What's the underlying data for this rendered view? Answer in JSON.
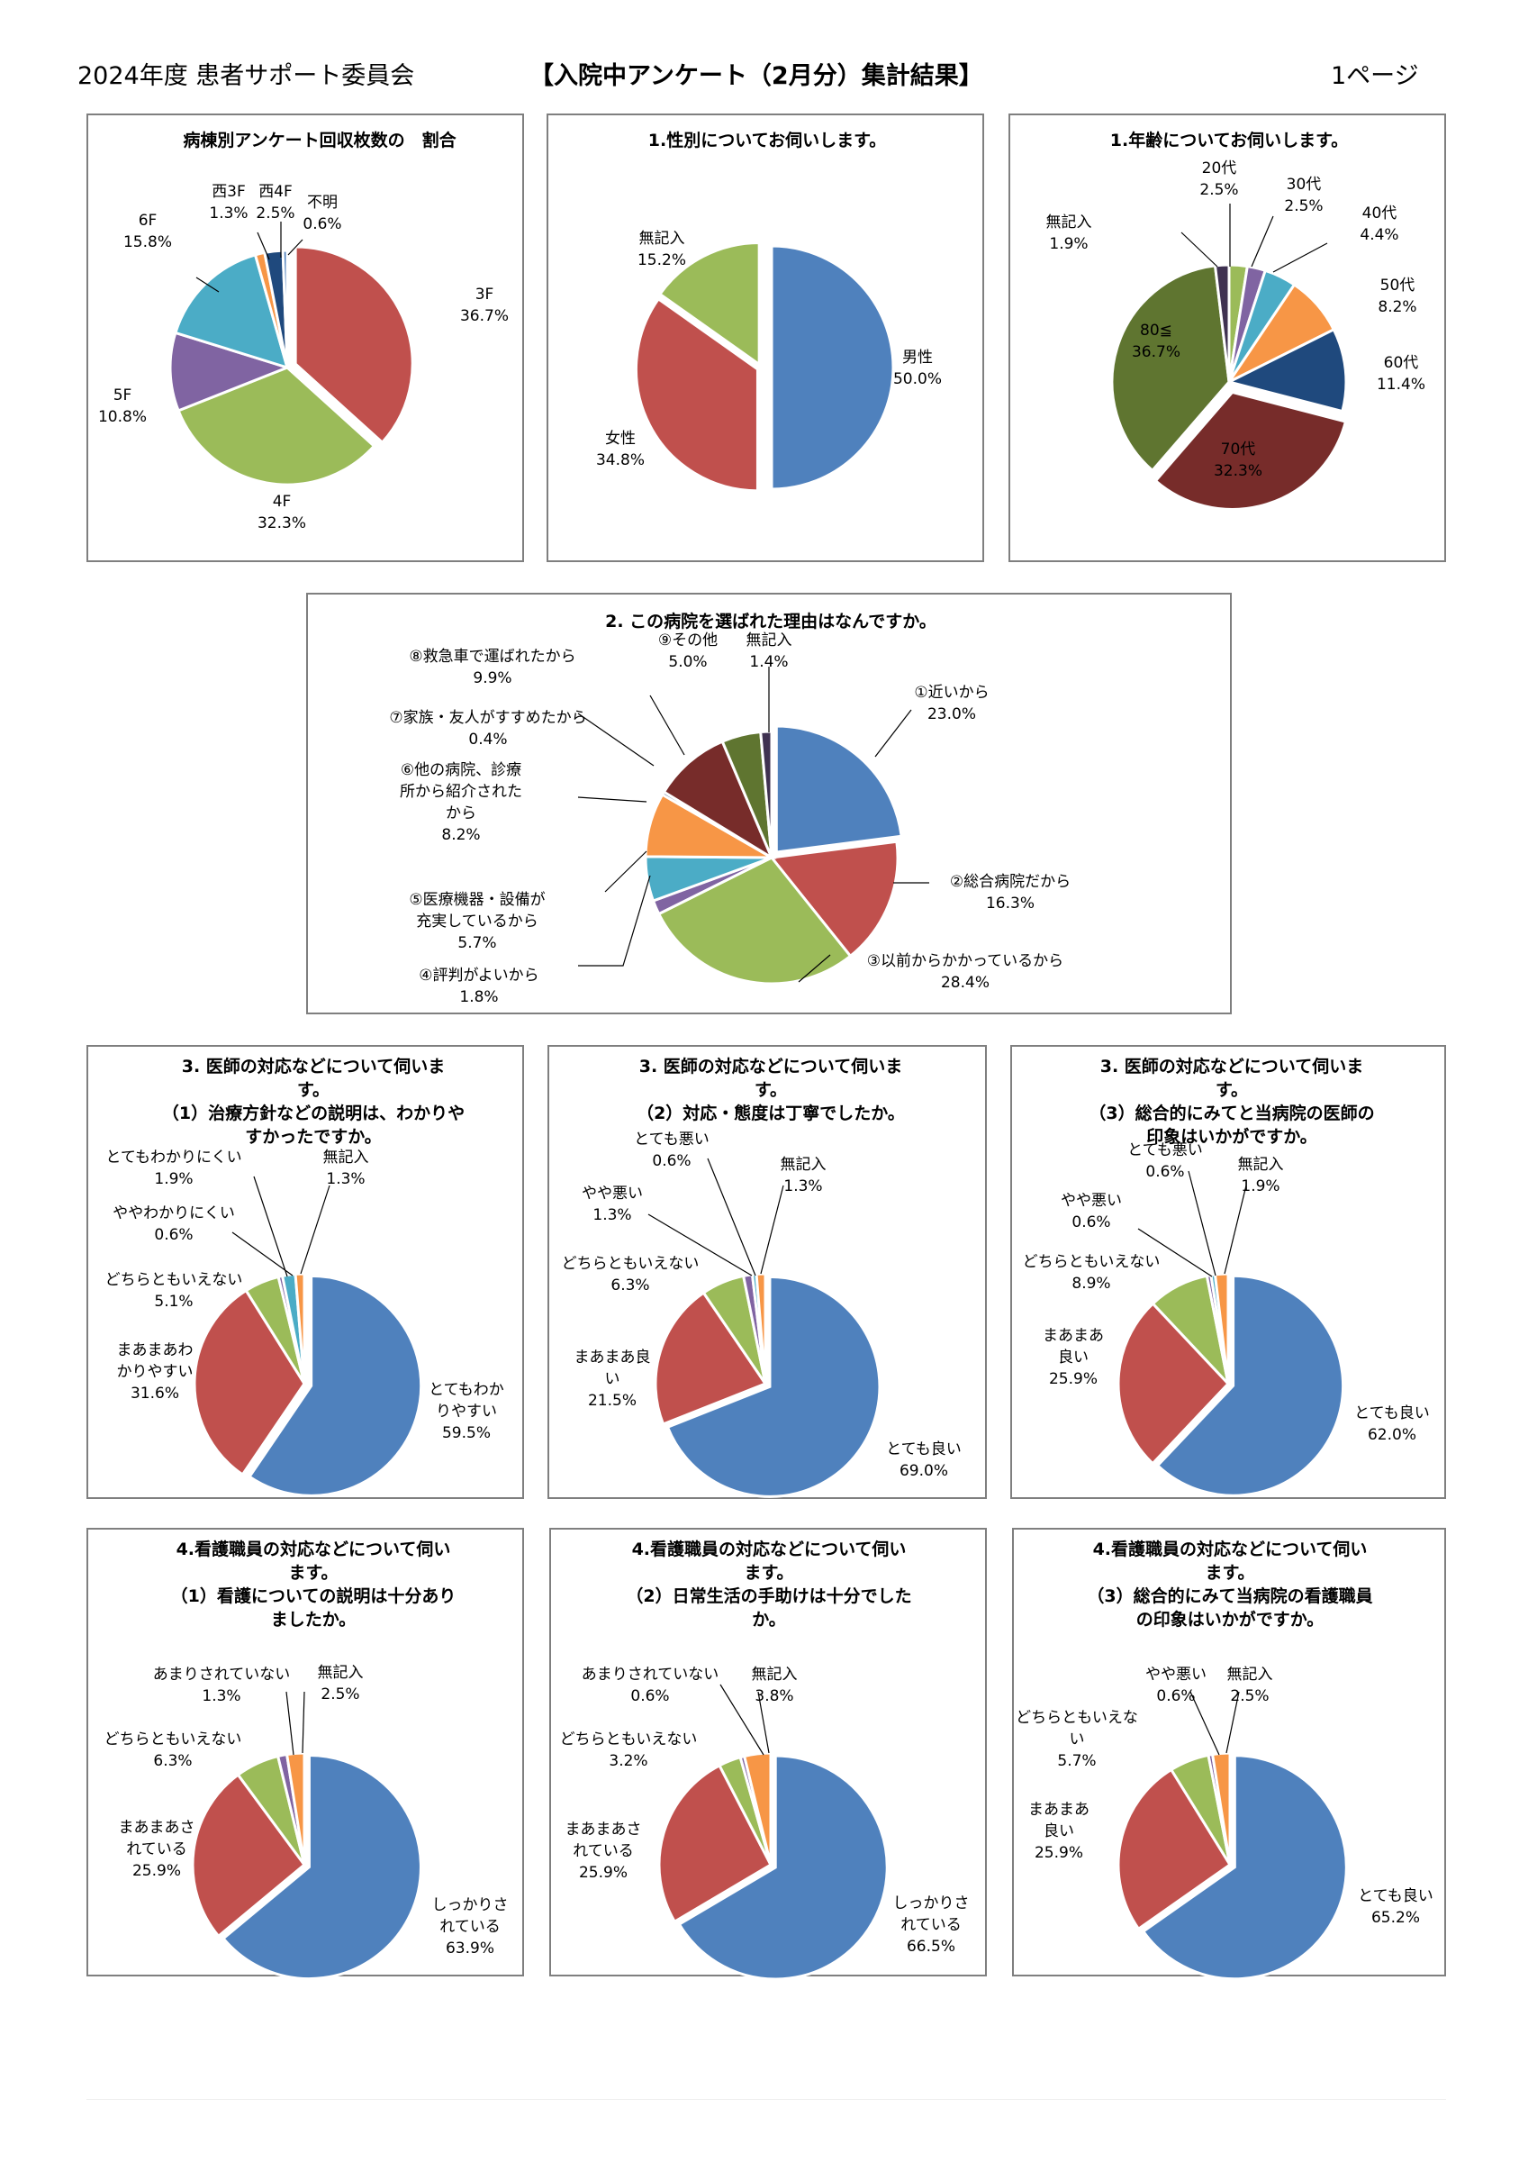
{
  "header": {
    "left": "2024年度 患者サポート委員会",
    "center": "【入院中アンケート（2月分）集計結果】",
    "right": "1ページ"
  },
  "chart_data": [
    {
      "id": "c1",
      "type": "pie",
      "title": [
        "病棟別アンケート回収枚数の　割合"
      ],
      "slices": [
        {
          "label": [
            "3F"
          ],
          "value": 36.7,
          "pct": "36.7%",
          "color": "#C0504D"
        },
        {
          "label": [
            "4F"
          ],
          "value": 32.3,
          "pct": "32.3%",
          "color": "#9BBB59"
        },
        {
          "label": [
            "5F"
          ],
          "value": 10.8,
          "pct": "10.8%",
          "color": "#8064A2"
        },
        {
          "label": [
            "6F"
          ],
          "value": 15.8,
          "pct": "15.8%",
          "color": "#4BACC6"
        },
        {
          "label": [
            "西3F"
          ],
          "value": 1.3,
          "pct": "1.3%",
          "color": "#F79646"
        },
        {
          "label": [
            "西4F"
          ],
          "value": 2.5,
          "pct": "2.5%",
          "color": "#1F497D"
        },
        {
          "label": [
            "不明"
          ],
          "value": 0.6,
          "pct": "0.6%",
          "color": "#4F81BD"
        }
      ]
    },
    {
      "id": "c2",
      "type": "pie",
      "title": [
        "1.性別についてお伺いします。"
      ],
      "slices": [
        {
          "label": [
            "男性"
          ],
          "value": 50.0,
          "pct": "50.0%",
          "color": "#4F81BD"
        },
        {
          "label": [
            "女性"
          ],
          "value": 34.8,
          "pct": "34.8%",
          "color": "#C0504D"
        },
        {
          "label": [
            "無記入"
          ],
          "value": 15.2,
          "pct": "15.2%",
          "color": "#9BBB59"
        }
      ]
    },
    {
      "id": "c3",
      "type": "pie",
      "title": [
        "1.年齢についてお伺いします。"
      ],
      "slices": [
        {
          "label": [
            "20代"
          ],
          "value": 2.5,
          "pct": "2.5%",
          "color": "#9BBB59"
        },
        {
          "label": [
            "30代"
          ],
          "value": 2.5,
          "pct": "2.5%",
          "color": "#8064A2"
        },
        {
          "label": [
            "40代"
          ],
          "value": 4.4,
          "pct": "4.4%",
          "color": "#4BACC6"
        },
        {
          "label": [
            "50代"
          ],
          "value": 8.2,
          "pct": "8.2%",
          "color": "#F79646"
        },
        {
          "label": [
            "60代"
          ],
          "value": 11.4,
          "pct": "11.4%",
          "color": "#1F497D"
        },
        {
          "label": [
            "70代"
          ],
          "value": 32.3,
          "pct": "32.3%",
          "color": "#772C2A"
        },
        {
          "label": [
            "80≦"
          ],
          "value": 36.7,
          "pct": "36.7%",
          "color": "#5F7530"
        },
        {
          "label": [
            "無記入"
          ],
          "value": 1.9,
          "pct": "1.9%",
          "color": "#3F3151"
        }
      ]
    },
    {
      "id": "c4",
      "type": "pie",
      "title": [
        "2. この病院を選ばれた理由はなんですか。"
      ],
      "slices": [
        {
          "label": [
            "①近いから"
          ],
          "value": 23.0,
          "pct": "23.0%",
          "color": "#4F81BD"
        },
        {
          "label": [
            "②総合病院だから"
          ],
          "value": 16.3,
          "pct": "16.3%",
          "color": "#C0504D"
        },
        {
          "label": [
            "③以前からかかっているから"
          ],
          "value": 28.4,
          "pct": "28.4%",
          "color": "#9BBB59"
        },
        {
          "label": [
            "④評判がよいから"
          ],
          "value": 1.8,
          "pct": "1.8%",
          "color": "#8064A2"
        },
        {
          "label": [
            "⑤医療機器・設備が",
            "充実しているから"
          ],
          "value": 5.7,
          "pct": "5.7%",
          "color": "#4BACC6"
        },
        {
          "label": [
            "⑥他の病院、診療",
            "所から紹介された",
            "から"
          ],
          "value": 8.2,
          "pct": "8.2%",
          "color": "#F79646"
        },
        {
          "label": [
            "⑦家族・友人がすすめたから"
          ],
          "value": 0.4,
          "pct": "0.4%",
          "color": "#1F497D"
        },
        {
          "label": [
            "⑧救急車で運ばれたから"
          ],
          "value": 9.9,
          "pct": "9.9%",
          "color": "#772C2A"
        },
        {
          "label": [
            "⑨その他"
          ],
          "value": 5.0,
          "pct": "5.0%",
          "color": "#5F7530"
        },
        {
          "label": [
            "無記入"
          ],
          "value": 1.4,
          "pct": "1.4%",
          "color": "#3F3151"
        }
      ]
    },
    {
      "id": "c5",
      "type": "pie",
      "title": [
        "3. 医師の対応などについて伺いま",
        "す。",
        "（1）治療方針などの説明は、わかりや",
        "すかったですか。"
      ],
      "slices": [
        {
          "label": [
            "とてもわか",
            "りやすい"
          ],
          "value": 59.5,
          "pct": "59.5%",
          "color": "#4F81BD"
        },
        {
          "label": [
            "まあまあわ",
            "かりやすい"
          ],
          "value": 31.6,
          "pct": "31.6%",
          "color": "#C0504D"
        },
        {
          "label": [
            "どちらともいえない"
          ],
          "value": 5.1,
          "pct": "5.1%",
          "color": "#9BBB59"
        },
        {
          "label": [
            "ややわかりにくい"
          ],
          "value": 0.6,
          "pct": "0.6%",
          "color": "#8064A2"
        },
        {
          "label": [
            "とてもわかりにくい"
          ],
          "value": 1.9,
          "pct": "1.9%",
          "color": "#4BACC6"
        },
        {
          "label": [
            "無記入"
          ],
          "value": 1.3,
          "pct": "1.3%",
          "color": "#F79646"
        }
      ]
    },
    {
      "id": "c6",
      "type": "pie",
      "title": [
        "3. 医師の対応などについて伺いま",
        "す。",
        "（2）対応・態度は丁寧でしたか。"
      ],
      "slices": [
        {
          "label": [
            "とても良い"
          ],
          "value": 69.0,
          "pct": "69.0%",
          "color": "#4F81BD"
        },
        {
          "label": [
            "まあまあ良",
            "い"
          ],
          "value": 21.5,
          "pct": "21.5%",
          "color": "#C0504D"
        },
        {
          "label": [
            "どちらともいえない"
          ],
          "value": 6.3,
          "pct": "6.3%",
          "color": "#9BBB59"
        },
        {
          "label": [
            "やや悪い"
          ],
          "value": 1.3,
          "pct": "1.3%",
          "color": "#8064A2"
        },
        {
          "label": [
            "とても悪い"
          ],
          "value": 0.6,
          "pct": "0.6%",
          "color": "#4BACC6"
        },
        {
          "label": [
            "無記入"
          ],
          "value": 1.3,
          "pct": "1.3%",
          "color": "#F79646"
        }
      ]
    },
    {
      "id": "c7",
      "type": "pie",
      "title": [
        "3. 医師の対応などについて伺いま",
        "す。",
        "（3）総合的にみてと当病院の医師の",
        "印象はいかがですか。"
      ],
      "slices": [
        {
          "label": [
            "とても良い"
          ],
          "value": 62.0,
          "pct": "62.0%",
          "color": "#4F81BD"
        },
        {
          "label": [
            "まあまあ",
            "良い"
          ],
          "value": 25.9,
          "pct": "25.9%",
          "color": "#C0504D"
        },
        {
          "label": [
            "どちらともいえない"
          ],
          "value": 8.9,
          "pct": "8.9%",
          "color": "#9BBB59"
        },
        {
          "label": [
            "やや悪い"
          ],
          "value": 0.6,
          "pct": "0.6%",
          "color": "#8064A2"
        },
        {
          "label": [
            "とても悪い"
          ],
          "value": 0.6,
          "pct": "0.6%",
          "color": "#4BACC6"
        },
        {
          "label": [
            "無記入"
          ],
          "value": 1.9,
          "pct": "1.9%",
          "color": "#F79646"
        }
      ]
    },
    {
      "id": "c8",
      "type": "pie",
      "title": [
        "4.看護職員の対応などについて伺い",
        "ます。",
        "（1）看護についての説明は十分あり",
        "ましたか。"
      ],
      "slices": [
        {
          "label": [
            "しっかりさ",
            "れている"
          ],
          "value": 63.9,
          "pct": "63.9%",
          "color": "#4F81BD"
        },
        {
          "label": [
            "まあまあさ",
            "れている"
          ],
          "value": 25.9,
          "pct": "25.9%",
          "color": "#C0504D"
        },
        {
          "label": [
            "どちらともいえない"
          ],
          "value": 6.3,
          "pct": "6.3%",
          "color": "#9BBB59"
        },
        {
          "label": [
            "あまりされていない"
          ],
          "value": 1.3,
          "pct": "1.3%",
          "color": "#8064A2"
        },
        {
          "label": [
            "無記入"
          ],
          "value": 2.5,
          "pct": "2.5%",
          "color": "#F79646"
        }
      ]
    },
    {
      "id": "c9",
      "type": "pie",
      "title": [
        "4.看護職員の対応などについて伺い",
        "ます。",
        "（2）日常生活の手助けは十分でした",
        "か。"
      ],
      "slices": [
        {
          "label": [
            "しっかりさ",
            "れている"
          ],
          "value": 66.5,
          "pct": "66.5%",
          "color": "#4F81BD"
        },
        {
          "label": [
            "まあまあさ",
            "れている"
          ],
          "value": 25.9,
          "pct": "25.9%",
          "color": "#C0504D"
        },
        {
          "label": [
            "どちらともいえない"
          ],
          "value": 3.2,
          "pct": "3.2%",
          "color": "#9BBB59"
        },
        {
          "label": [
            "あまりされていない"
          ],
          "value": 0.6,
          "pct": "0.6%",
          "color": "#8064A2"
        },
        {
          "label": [
            "無記入"
          ],
          "value": 3.8,
          "pct": "3.8%",
          "color": "#F79646"
        }
      ]
    },
    {
      "id": "c10",
      "type": "pie",
      "title": [
        "4.看護職員の対応などについて伺い",
        "ます。",
        "（3）総合的にみて当病院の看護職員",
        "の印象はいかがですか。"
      ],
      "slices": [
        {
          "label": [
            "とても良い"
          ],
          "value": 65.2,
          "pct": "65.2%",
          "color": "#4F81BD"
        },
        {
          "label": [
            "まあまあ",
            "良い"
          ],
          "value": 25.9,
          "pct": "25.9%",
          "color": "#C0504D"
        },
        {
          "label": [
            "どちらともいえな",
            "い"
          ],
          "value": 5.7,
          "pct": "5.7%",
          "color": "#9BBB59"
        },
        {
          "label": [
            "やや悪い"
          ],
          "value": 0.6,
          "pct": "0.6%",
          "color": "#8064A2"
        },
        {
          "label": [
            "無記入"
          ],
          "value": 2.5,
          "pct": "2.5%",
          "color": "#F79646"
        }
      ]
    }
  ]
}
